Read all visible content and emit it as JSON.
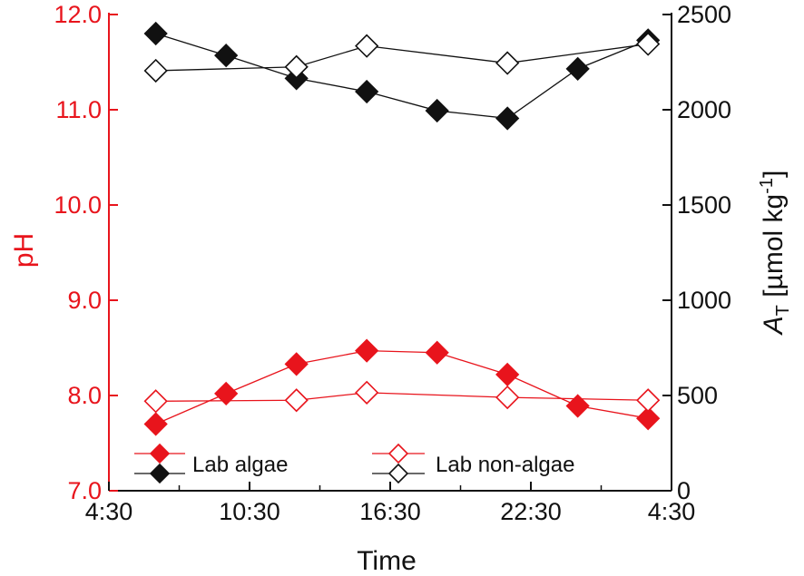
{
  "colors": {
    "red": "#e8141c",
    "black": "#111111"
  },
  "chart_data": {
    "type": "line",
    "x_axis": {
      "label": "Time",
      "range": [
        "4:30",
        "4:30 (+1 day)"
      ],
      "range_hours": [
        4.5,
        28.5
      ],
      "ticks": [
        "4:30",
        "10:30",
        "16:30",
        "22:30",
        "4:30"
      ]
    },
    "y_left": {
      "label": "pH",
      "range": [
        7.0,
        12.0
      ],
      "ticks": [
        "7.0",
        "8.0",
        "9.0",
        "10.0",
        "11.0",
        "12.0"
      ],
      "color": "#e8141c"
    },
    "y_right": {
      "label_main": "A",
      "label_sub": "T",
      "label_unit": " [µmol kg",
      "label_sup": "-1",
      "label_close": "]",
      "range": [
        0,
        2500
      ],
      "ticks": [
        "0",
        "500",
        "1000",
        "1500",
        "2000",
        "2500"
      ],
      "color": "#111111"
    },
    "series": [
      {
        "name": "Lab algae",
        "axis": "left",
        "color": "#e8141c",
        "filled": true,
        "x": [
          "6:30",
          "9:30",
          "12:30",
          "15:30",
          "18:30",
          "21:30",
          "00:30",
          "03:30"
        ],
        "y": [
          7.7,
          8.02,
          8.33,
          8.47,
          8.45,
          8.22,
          7.89,
          7.76
        ]
      },
      {
        "name": "Lab non-algae",
        "axis": "left",
        "color": "#e8141c",
        "filled": false,
        "x": [
          "6:30",
          "12:30",
          "15:30",
          "21:30",
          "03:30"
        ],
        "y": [
          7.94,
          7.95,
          8.03,
          7.98,
          7.95
        ]
      },
      {
        "name": "Lab algae",
        "axis": "right",
        "color": "#111111",
        "filled": true,
        "x": [
          "6:30",
          "9:30",
          "12:30",
          "15:30",
          "18:30",
          "21:30",
          "00:30",
          "03:30"
        ],
        "y": [
          2400,
          2285,
          2165,
          2095,
          1995,
          1955,
          2215,
          2365
        ]
      },
      {
        "name": "Lab non-algae",
        "axis": "right",
        "color": "#111111",
        "filled": false,
        "x": [
          "6:30",
          "12:30",
          "15:30",
          "21:30",
          "03:30"
        ],
        "y": [
          2205,
          2225,
          2335,
          2245,
          2345
        ]
      }
    ],
    "legend": {
      "placement": "bottom",
      "entries": [
        "Lab algae",
        "Lab non-algae"
      ]
    }
  }
}
